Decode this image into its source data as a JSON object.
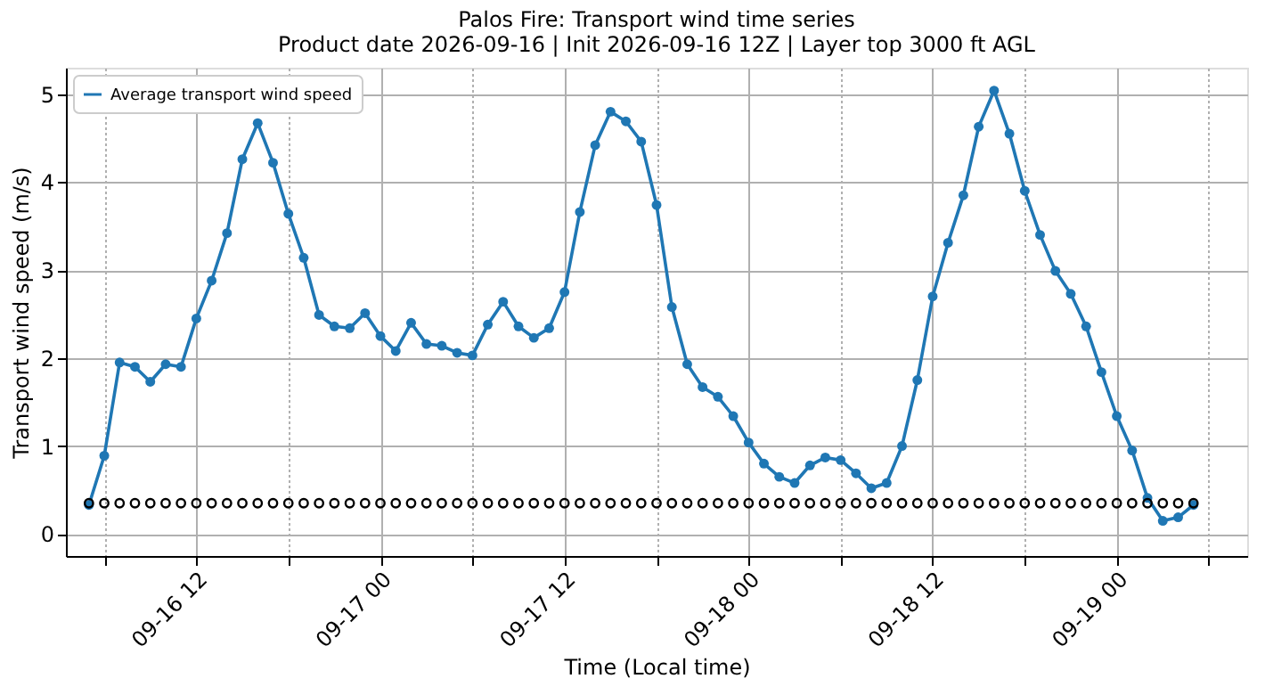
{
  "chart_data": {
    "type": "line",
    "title": "Palos Fire: Transport wind time series",
    "subtitle": "Product date 2026-09-16 | Init 2026-09-16 12Z | Layer top 3000 ft AGL",
    "xlabel": "Time (Local time)",
    "ylabel": "Transport wind speed (m/s)",
    "x": [
      "2026-09-16T05:00",
      "2026-09-16T06:00",
      "2026-09-16T07:00",
      "2026-09-16T08:00",
      "2026-09-16T09:00",
      "2026-09-16T10:00",
      "2026-09-16T11:00",
      "2026-09-16T12:00",
      "2026-09-16T13:00",
      "2026-09-16T14:00",
      "2026-09-16T15:00",
      "2026-09-16T16:00",
      "2026-09-16T17:00",
      "2026-09-16T18:00",
      "2026-09-16T19:00",
      "2026-09-16T20:00",
      "2026-09-16T21:00",
      "2026-09-16T22:00",
      "2026-09-16T23:00",
      "2026-09-17T00:00",
      "2026-09-17T01:00",
      "2026-09-17T02:00",
      "2026-09-17T03:00",
      "2026-09-17T04:00",
      "2026-09-17T05:00",
      "2026-09-17T06:00",
      "2026-09-17T07:00",
      "2026-09-17T08:00",
      "2026-09-17T09:00",
      "2026-09-17T10:00",
      "2026-09-17T11:00",
      "2026-09-17T12:00",
      "2026-09-17T13:00",
      "2026-09-17T14:00",
      "2026-09-17T15:00",
      "2026-09-17T16:00",
      "2026-09-17T17:00",
      "2026-09-17T18:00",
      "2026-09-17T19:00",
      "2026-09-17T20:00",
      "2026-09-17T21:00",
      "2026-09-17T22:00",
      "2026-09-17T23:00",
      "2026-09-18T00:00",
      "2026-09-18T01:00",
      "2026-09-18T02:00",
      "2026-09-18T03:00",
      "2026-09-18T04:00",
      "2026-09-18T05:00",
      "2026-09-18T06:00",
      "2026-09-18T07:00",
      "2026-09-18T08:00",
      "2026-09-18T09:00",
      "2026-09-18T10:00",
      "2026-09-18T11:00",
      "2026-09-18T12:00",
      "2026-09-18T13:00",
      "2026-09-18T14:00",
      "2026-09-18T15:00",
      "2026-09-18T16:00",
      "2026-09-18T17:00",
      "2026-09-18T18:00",
      "2026-09-18T19:00",
      "2026-09-18T20:00",
      "2026-09-18T21:00",
      "2026-09-18T22:00",
      "2026-09-18T23:00",
      "2026-09-19T00:00",
      "2026-09-19T01:00",
      "2026-09-19T02:00",
      "2026-09-19T03:00",
      "2026-09-19T04:00",
      "2026-09-19T05:00"
    ],
    "series": [
      {
        "name": "Average transport wind speed",
        "color": "#1f77b4",
        "marker": "circle",
        "line_style": "solid",
        "values": [
          0.33,
          0.89,
          1.95,
          1.9,
          1.73,
          1.93,
          1.9,
          2.45,
          2.88,
          3.42,
          4.26,
          4.67,
          4.22,
          3.64,
          3.14,
          2.49,
          2.36,
          2.34,
          2.51,
          2.25,
          2.08,
          2.4,
          2.16,
          2.14,
          2.06,
          2.03,
          2.38,
          2.64,
          2.36,
          2.23,
          2.34,
          2.75,
          3.66,
          4.42,
          4.8,
          4.69,
          4.46,
          3.74,
          2.58,
          1.93,
          1.67,
          1.56,
          1.34,
          1.04,
          0.8,
          0.65,
          0.58,
          0.78,
          0.87,
          0.84,
          0.69,
          0.52,
          0.58,
          1.0,
          1.75,
          2.7,
          3.31,
          3.85,
          4.63,
          5.04,
          4.55,
          3.9,
          3.4,
          2.99,
          2.73,
          2.36,
          1.84,
          1.34,
          0.95,
          0.41,
          0.15,
          0.19,
          0.33
        ]
      },
      {
        "color": "#000000",
        "type": "scatter",
        "marker": "circle",
        "values": [
          0.35,
          0.35,
          0.35,
          0.35,
          0.35,
          0.35,
          0.35,
          0.35,
          0.35,
          0.35,
          0.35,
          0.35,
          0.35,
          0.35,
          0.35,
          0.35,
          0.35,
          0.35,
          0.35,
          0.35,
          0.35,
          0.35,
          0.35,
          0.35,
          0.35,
          0.35,
          0.35,
          0.35,
          0.35,
          0.35,
          0.35,
          0.35,
          0.35,
          0.35,
          0.35,
          0.35,
          0.35,
          0.35,
          0.35,
          0.35,
          0.35,
          0.35,
          0.35,
          0.35,
          0.35,
          0.35,
          0.35,
          0.35,
          0.35,
          0.35,
          0.35,
          0.35,
          0.35,
          0.35,
          0.35,
          0.35,
          0.35,
          0.35,
          0.35,
          0.35,
          0.35,
          0.35,
          0.35,
          0.35,
          0.35,
          0.35,
          0.35,
          0.35,
          0.35,
          0.35,
          0.35,
          0.35,
          0.35
        ]
      }
    ],
    "xlim": [
      "2026-09-16T03:30",
      "2026-09-19T08:30"
    ],
    "xticks": [
      {
        "value": "2026-09-16T06:00",
        "label": null
      },
      {
        "value": "2026-09-16T12:00",
        "label": "09-16 12"
      },
      {
        "value": "2026-09-16T18:00",
        "label": null
      },
      {
        "value": "2026-09-17T00:00",
        "label": "09-17 00"
      },
      {
        "value": "2026-09-17T06:00",
        "label": null
      },
      {
        "value": "2026-09-17T12:00",
        "label": "09-17 12"
      },
      {
        "value": "2026-09-17T18:00",
        "label": null
      },
      {
        "value": "2026-09-18T00:00",
        "label": "09-18 00"
      },
      {
        "value": "2026-09-18T06:00",
        "label": null
      },
      {
        "value": "2026-09-18T12:00",
        "label": "09-18 12"
      },
      {
        "value": "2026-09-18T18:00",
        "label": null
      },
      {
        "value": "2026-09-19T00:00",
        "label": "09-19 00"
      },
      {
        "value": "2026-09-19T06:00",
        "label": null
      }
    ],
    "ylim": [
      -0.25,
      5.3
    ],
    "yticks": [
      0,
      1,
      2,
      3,
      4,
      5
    ],
    "grid": true,
    "legend": "top left"
  }
}
